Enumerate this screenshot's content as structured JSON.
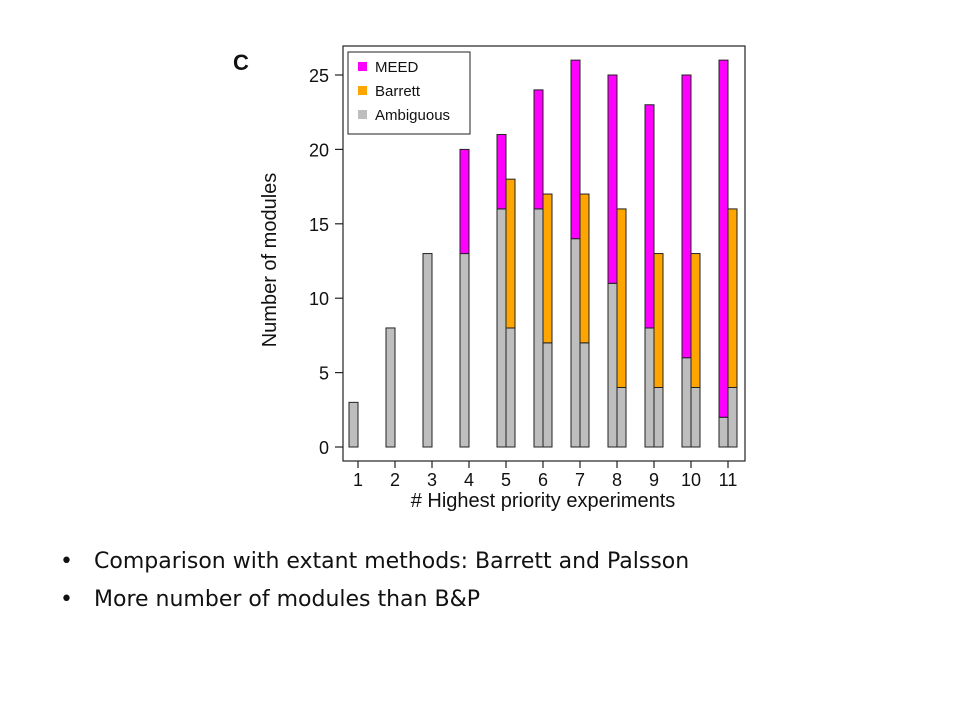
{
  "panel_letter": "C",
  "bullets": [
    "Comparison with extant methods: Barrett and Palsson",
    "More number of modules than B&P"
  ],
  "chart_data": {
    "type": "bar",
    "xlabel": "# Highest priority experiments",
    "ylabel": "Number of modules",
    "ylim": [
      0,
      26.5
    ],
    "yticks": [
      0,
      5,
      10,
      15,
      20,
      25
    ],
    "categories": [
      "1",
      "2",
      "3",
      "4",
      "5",
      "6",
      "7",
      "8",
      "9",
      "10",
      "11"
    ],
    "legend_position": "top-left",
    "colors": {
      "MEED": "#ff00ff",
      "Barrett": "#ffa500",
      "Ambiguous": "#bebebe"
    },
    "legend": [
      "MEED",
      "Barrett",
      "Ambiguous"
    ],
    "groups": [
      {
        "name": "MEED",
        "stack": [
          {
            "series": "Ambiguous",
            "values": [
              3,
              8,
              13,
              13,
              16,
              16,
              14,
              11,
              8,
              6,
              2
            ]
          },
          {
            "series": "MEED",
            "values": [
              0,
              0,
              0,
              7,
              5,
              8,
              12,
              14,
              15,
              19,
              24
            ]
          }
        ]
      },
      {
        "name": "Barrett",
        "stack": [
          {
            "series": "Ambiguous",
            "values": [
              null,
              null,
              null,
              null,
              8,
              7,
              7,
              4,
              4,
              4,
              4
            ]
          },
          {
            "series": "Barrett",
            "values": [
              null,
              null,
              null,
              null,
              10,
              10,
              10,
              12,
              9,
              9,
              12
            ]
          }
        ]
      }
    ]
  }
}
